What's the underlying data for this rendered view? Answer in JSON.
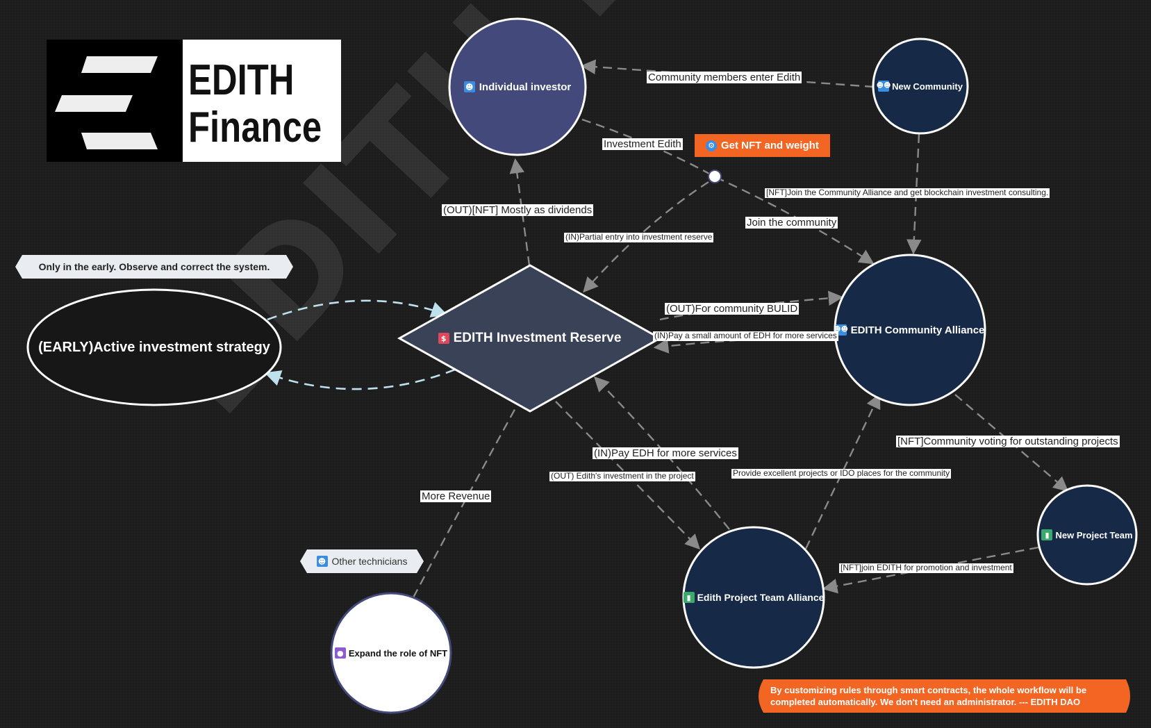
{
  "logo": {
    "line1": "EDITH",
    "line2": "Finance"
  },
  "watermark": "EDITH Finance",
  "colors": {
    "background": "#1d1d1d",
    "investor_node": "#43497a",
    "navy_node": "#162a47",
    "reserve_node": "#3a4257",
    "strategy_node": "#171717",
    "nft_node": "#ffffff",
    "accent_orange": "#f26522",
    "edge": "#8a8a8a",
    "edge_light": "#bfe1ee"
  },
  "nodes": {
    "individual_investor": {
      "label": "Individual investor",
      "icon": "person-icon"
    },
    "new_community": {
      "label": "New Community",
      "icon": "team-icon"
    },
    "reserve": {
      "label": "EDITH Investment Reserve",
      "icon": "dollar-icon"
    },
    "strategy": {
      "label": "(EARLY)Active investment strategy"
    },
    "community_alliance": {
      "label": "EDITH Community Alliance",
      "icon": "team-icon"
    },
    "new_project_team": {
      "label": "New Project Team",
      "icon": "tower-icon"
    },
    "project_alliance": {
      "label": "Edith Project Team Alliance",
      "icon": "tower-icon"
    },
    "expand_nft": {
      "label": "Expand the role of NFT",
      "icon": "bulb-icon"
    }
  },
  "tags": {
    "nft_weight": {
      "label": "Get NFT and weight",
      "icon": "gear-icon"
    },
    "early_note": "Only in the early. Observe and correct the system.",
    "other_technicians": {
      "label": "Other technicians",
      "icon": "person-icon"
    },
    "footer_note": "By customizing rules through smart contracts, the whole workflow will be completed automatically. We don't need an administrator. --- EDITH DAO"
  },
  "edge_labels": {
    "community_enter": "Community members enter Edith",
    "investment_edith": "Investment Edith",
    "nft_join_alliance": "[NFT]Join the Community Alliance and get blockchain investment consulting.",
    "join_community": "Join the community",
    "out_dividends": "(OUT)[NFT] Mostly as dividends",
    "in_partial": "(IN)Partial entry into investment reserve",
    "out_community_build": "(OUT)For community BULID",
    "in_pay_small": "(IN)Pay a small amount of EDH for more services",
    "nft_voting": "[NFT]Community voting for outstanding projects",
    "in_pay_edh": "(IN)Pay EDH for more services",
    "out_project_invest": "(OUT) Edith's investment in the project",
    "provide_projects": "Provide excellent projects or IDO places for the community",
    "more_revenue": "More Revenue",
    "nft_join_promotion": "[NFT]join EDITH for promotion and investment"
  }
}
